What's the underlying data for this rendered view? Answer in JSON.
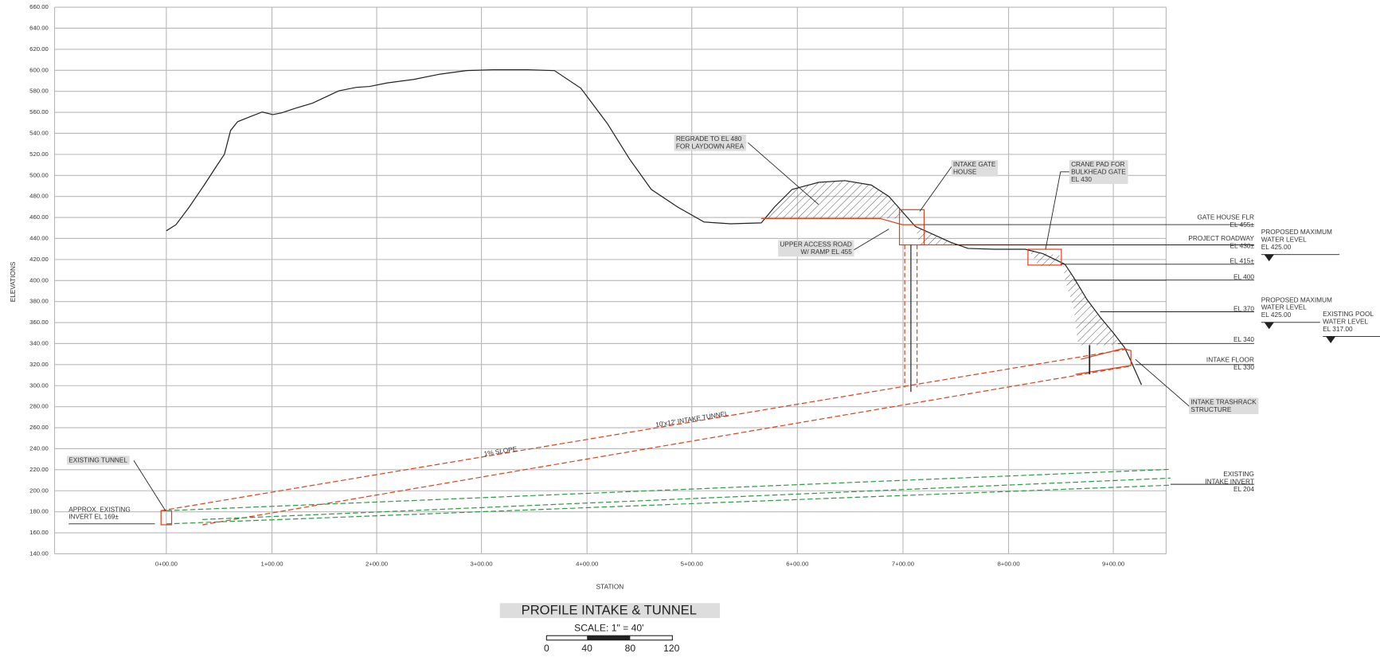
{
  "axis": {
    "y_title": "ELEVATIONS",
    "x_title": "STATION",
    "y_labels": [
      "660.00",
      "640.00",
      "620.00",
      "600.00",
      "580.00",
      "560.00",
      "540.00",
      "520.00",
      "500.00",
      "480.00",
      "460.00",
      "440.00",
      "420.00",
      "400.00",
      "380.00",
      "360.00",
      "340.00",
      "320.00",
      "300.00",
      "280.00",
      "260.00",
      "240.00",
      "220.00",
      "200.00",
      "180.00",
      "160.00",
      "140.00"
    ],
    "x_labels": [
      "0+00.00",
      "1+00.00",
      "2+00.00",
      "3+00.00",
      "4+00.00",
      "5+00.00",
      "6+00.00",
      "7+00.00",
      "8+00.00",
      "9+00.00"
    ]
  },
  "annotations": [
    {
      "lines": [
        "REGRADE TO EL 480",
        "FOR LAYDOWN AREA"
      ]
    },
    {
      "lines": [
        "INTAKE GATE",
        "HOUSE"
      ]
    },
    {
      "lines": [
        "CRANE PAD FOR",
        "BULKHEAD GATE",
        "EL 430"
      ]
    },
    {
      "lines": [
        "GATE HOUSE FLR",
        "EL 455±"
      ]
    },
    {
      "lines": [
        "PROPOSED MAXIMUM",
        "WATER LEVEL",
        "EL 425.00"
      ]
    },
    {
      "lines": [
        "PROJECT ROADWAY",
        "EL 430±"
      ]
    },
    {
      "lines": [
        "EL 415±"
      ]
    },
    {
      "lines": [
        "EL 400"
      ]
    },
    {
      "lines": [
        "PROPOSED MAXIMUM",
        "WATER LEVEL",
        "EL 425.00"
      ]
    },
    {
      "lines": [
        "EL 370"
      ]
    },
    {
      "lines": [
        "EXISTING POOL",
        "WATER LEVEL",
        "EL 317.00"
      ]
    },
    {
      "lines": [
        "EL 340"
      ]
    },
    {
      "lines": [
        "INTAKE FLOOR",
        "EL 330"
      ]
    },
    {
      "lines": [
        "INTAKE TRASHRACK",
        "STRUCTURE"
      ]
    },
    {
      "lines": [
        "EXISTING",
        "INTAKE INVERT",
        "EL 204"
      ]
    },
    {
      "lines": [
        "UPPER ACCESS ROAD",
        "W/ RAMP EL 455"
      ]
    },
    {
      "lines": [
        "EXISTING TUNNEL"
      ]
    },
    {
      "lines": [
        "APPROX. EXISTING",
        "INVERT EL 169±"
      ]
    },
    {
      "lines": [
        "1% SLOPE"
      ]
    },
    {
      "lines": [
        "10'x12' INTAKE TUNNEL"
      ]
    }
  ],
  "title": "PROFILE INTAKE & TUNNEL",
  "scale": "SCALE: 1\" = 40'",
  "scale_bar": [
    "0",
    "40",
    "80",
    "120"
  ]
}
